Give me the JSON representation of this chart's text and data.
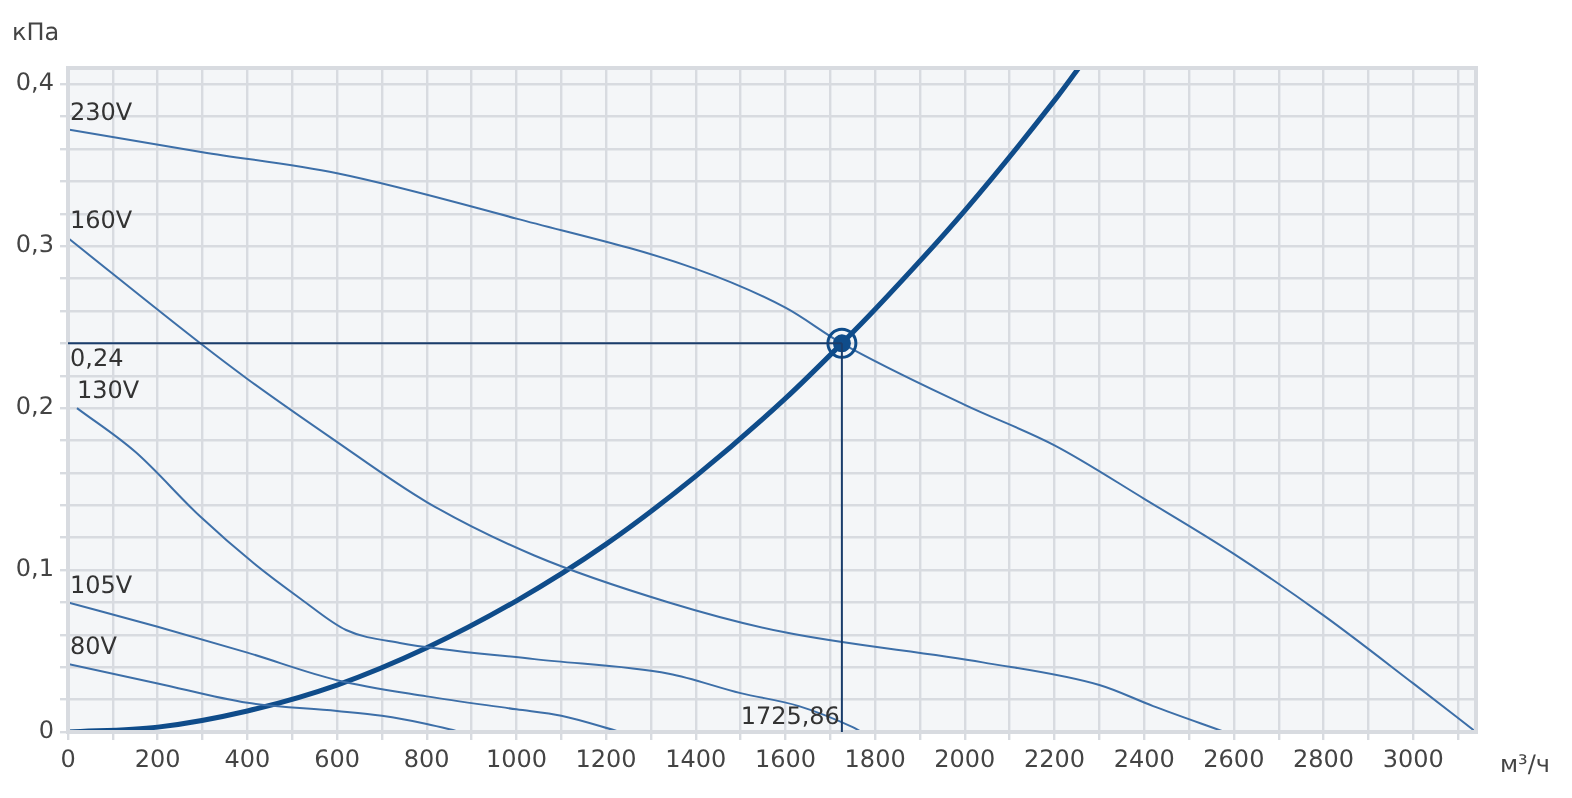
{
  "chart_data": {
    "type": "line",
    "xlabel": "м³/ч",
    "ylabel": "кПа",
    "xlim": [
      0,
      3140
    ],
    "ylim": [
      0,
      0.41
    ],
    "xticks": [
      0,
      {
        "value": 100,
        "label": null
      },
      200,
      {
        "value": 300,
        "label": null
      },
      400,
      {
        "value": 500,
        "label": null
      },
      600,
      {
        "value": 700,
        "label": null
      },
      800,
      {
        "value": 900,
        "label": null
      },
      1000,
      {
        "value": 1100,
        "label": null
      },
      1200,
      {
        "value": 1300,
        "label": null
      },
      1400,
      {
        "value": 1500,
        "label": null
      },
      1600,
      {
        "value": 1700,
        "label": null
      },
      1800,
      {
        "value": 1900,
        "label": null
      },
      2000,
      {
        "value": 2100,
        "label": null
      },
      2200,
      {
        "value": 2300,
        "label": null
      },
      2400,
      {
        "value": 2500,
        "label": null
      },
      2600,
      {
        "value": 2700,
        "label": null
      },
      2800,
      {
        "value": 2900,
        "label": null
      },
      3000,
      {
        "value": 3100,
        "label": null
      }
    ],
    "yticks": [
      0,
      {
        "value": 0.02,
        "label": null
      },
      {
        "value": 0.04,
        "label": null
      },
      {
        "value": 0.06,
        "label": null
      },
      {
        "value": 0.08,
        "label": null
      },
      {
        "value": 0.1,
        "label": "0,1"
      },
      {
        "value": 0.12,
        "label": null
      },
      {
        "value": 0.14,
        "label": null
      },
      {
        "value": 0.16,
        "label": null
      },
      {
        "value": 0.18,
        "label": null
      },
      {
        "value": 0.2,
        "label": "0,2"
      },
      {
        "value": 0.22,
        "label": null
      },
      {
        "value": 0.24,
        "label": null
      },
      {
        "value": 0.26,
        "label": null
      },
      {
        "value": 0.28,
        "label": null
      },
      {
        "value": 0.3,
        "label": "0,3"
      },
      {
        "value": 0.32,
        "label": null
      },
      {
        "value": 0.34,
        "label": null
      },
      {
        "value": 0.36,
        "label": null
      },
      {
        "value": 0.38,
        "label": null
      },
      {
        "value": 0.4,
        "label": "0,4"
      }
    ],
    "grid": true,
    "legend": false,
    "series": [
      {
        "name": "230V",
        "color": "#3d6fa8",
        "x": [
          0,
          300,
          600,
          1000,
          1400,
          1600,
          1725.86,
          2000,
          2200,
          2400,
          2600,
          2800,
          3000,
          3140
        ],
        "values": [
          0.372,
          0.358,
          0.345,
          0.317,
          0.286,
          0.262,
          0.24,
          0.202,
          0.177,
          0.144,
          0.11,
          0.072,
          0.03,
          0
        ]
      },
      {
        "name": "160V",
        "color": "#3d6fa8",
        "x": [
          0,
          295,
          400,
          590,
          800,
          1040,
          1340,
          1590,
          2040,
          2300,
          2420,
          2580
        ],
        "values": [
          0.305,
          0.24,
          0.218,
          0.181,
          0.142,
          0.109,
          0.08,
          0.062,
          0.043,
          0.029,
          0.016,
          0
        ]
      },
      {
        "name": "130V",
        "color": "#3d6fa8",
        "x": [
          20,
          150,
          295,
          415,
          520,
          620,
          740,
          1040,
          1340,
          1500,
          1630,
          1750,
          1770
        ],
        "values": [
          0.2,
          0.173,
          0.133,
          0.104,
          0.082,
          0.063,
          0.055,
          0.045,
          0.036,
          0.024,
          0.016,
          0.003,
          0
        ]
      },
      {
        "name": "105V",
        "color": "#3d6fa8",
        "x": [
          0,
          200,
          400,
          600,
          800,
          1000,
          1100,
          1232
        ],
        "values": [
          0.08,
          0.065,
          0.049,
          0.032,
          0.022,
          0.014,
          0.01,
          0
        ]
      },
      {
        "name": "80V",
        "color": "#3d6fa8",
        "x": [
          0,
          200,
          400,
          600,
          700,
          800,
          876
        ],
        "values": [
          0.042,
          0.03,
          0.018,
          0.013,
          0.01,
          0.005,
          0
        ]
      },
      {
        "color": "#0f4c8a",
        "x": [
          0,
          200,
          400,
          600,
          800,
          1000,
          1200,
          1400,
          1600,
          1725.86,
          1800,
          2000,
          2200,
          2254
        ],
        "values": [
          0,
          0.003,
          0.013,
          0.029,
          0.052,
          0.081,
          0.116,
          0.158,
          0.206,
          0.24,
          0.261,
          0.322,
          0.39,
          0.41
        ]
      },
      {
        "type": "scatter",
        "marker": "circle",
        "color": "#0f4c8a",
        "x": [
          1725.86
        ],
        "values": [
          0.24
        ]
      }
    ],
    "ref_lines": [
      {
        "axis": "y",
        "value": 0.24,
        "label": "0,24",
        "color": "#1a3d6b"
      },
      {
        "axis": "x",
        "value": 1725.86,
        "label": "1725,86",
        "color": "#1a3d6b"
      }
    ]
  }
}
